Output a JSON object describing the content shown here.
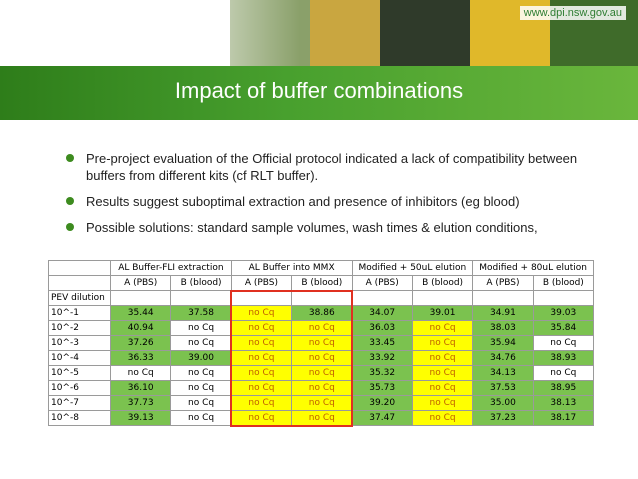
{
  "header": {
    "url": "www.dpi.nsw.gov.au",
    "photos": [
      {
        "name": "landscape-photo",
        "color": "#8aa06a"
      },
      {
        "name": "factory-photo",
        "color": "#c9a640"
      },
      {
        "name": "cattle-photo",
        "color": "#2f3a2a"
      },
      {
        "name": "sunflower-photo",
        "color": "#e0b82a"
      },
      {
        "name": "forest-photo",
        "color": "#3f6b2a"
      }
    ]
  },
  "title": "Impact of buffer combinations",
  "bullets": [
    "Pre-project evaluation of the Official protocol indicated a lack of compatibility between buffers from different kits (cf RLT buffer).",
    "Results suggest suboptimal extraction and presence of inhibitors (eg blood)",
    "Possible solutions: standard sample volumes, wash times & elution conditions,"
  ],
  "table": {
    "groups": [
      "AL Buffer-FLI extraction",
      "AL Buffer into MMX",
      "Modified + 50uL elution",
      "Modified + 80uL elution"
    ],
    "subheaders": [
      "A (PBS)",
      "B (blood)",
      "A (PBS)",
      "B (blood)",
      "A (PBS)",
      "B (blood)",
      "A (PBS)",
      "B (blood)"
    ],
    "pev_label": "PEV dilution",
    "rows": [
      {
        "label": "10^-1",
        "cells": [
          {
            "v": "35.44",
            "c": "g"
          },
          {
            "v": "37.58",
            "c": "g"
          },
          {
            "v": "no Cq",
            "c": "y"
          },
          {
            "v": "38.86",
            "c": "g"
          },
          {
            "v": "34.07",
            "c": "g"
          },
          {
            "v": "39.01",
            "c": "g"
          },
          {
            "v": "34.91",
            "c": "g"
          },
          {
            "v": "39.03",
            "c": "g"
          }
        ]
      },
      {
        "label": "10^-2",
        "cells": [
          {
            "v": "40.94",
            "c": "g"
          },
          {
            "v": "no Cq",
            "c": ""
          },
          {
            "v": "no Cq",
            "c": "y"
          },
          {
            "v": "no Cq",
            "c": "y"
          },
          {
            "v": "36.03",
            "c": "g"
          },
          {
            "v": "no Cq",
            "c": "y"
          },
          {
            "v": "38.03",
            "c": "g"
          },
          {
            "v": "35.84",
            "c": "g"
          }
        ]
      },
      {
        "label": "10^-3",
        "cells": [
          {
            "v": "37.26",
            "c": "g"
          },
          {
            "v": "no Cq",
            "c": ""
          },
          {
            "v": "no Cq",
            "c": "y"
          },
          {
            "v": "no Cq",
            "c": "y"
          },
          {
            "v": "33.45",
            "c": "g"
          },
          {
            "v": "no Cq",
            "c": "y"
          },
          {
            "v": "35.94",
            "c": "g"
          },
          {
            "v": "no Cq",
            "c": ""
          }
        ]
      },
      {
        "label": "10^-4",
        "cells": [
          {
            "v": "36.33",
            "c": "g"
          },
          {
            "v": "39.00",
            "c": "g"
          },
          {
            "v": "no Cq",
            "c": "y"
          },
          {
            "v": "no Cq",
            "c": "y"
          },
          {
            "v": "33.92",
            "c": "g"
          },
          {
            "v": "no Cq",
            "c": "y"
          },
          {
            "v": "34.76",
            "c": "g"
          },
          {
            "v": "38.93",
            "c": "g"
          }
        ]
      },
      {
        "label": "10^-5",
        "cells": [
          {
            "v": "no Cq",
            "c": ""
          },
          {
            "v": "no Cq",
            "c": ""
          },
          {
            "v": "no Cq",
            "c": "y"
          },
          {
            "v": "no Cq",
            "c": "y"
          },
          {
            "v": "35.32",
            "c": "g"
          },
          {
            "v": "no Cq",
            "c": "y"
          },
          {
            "v": "34.13",
            "c": "g"
          },
          {
            "v": "no Cq",
            "c": ""
          }
        ]
      },
      {
        "label": "10^-6",
        "cells": [
          {
            "v": "36.10",
            "c": "g"
          },
          {
            "v": "no Cq",
            "c": ""
          },
          {
            "v": "no Cq",
            "c": "y"
          },
          {
            "v": "no Cq",
            "c": "y"
          },
          {
            "v": "35.73",
            "c": "g"
          },
          {
            "v": "no Cq",
            "c": "y"
          },
          {
            "v": "37.53",
            "c": "g"
          },
          {
            "v": "38.95",
            "c": "g"
          }
        ]
      },
      {
        "label": "10^-7",
        "cells": [
          {
            "v": "37.73",
            "c": "g"
          },
          {
            "v": "no Cq",
            "c": ""
          },
          {
            "v": "no Cq",
            "c": "y"
          },
          {
            "v": "no Cq",
            "c": "y"
          },
          {
            "v": "39.20",
            "c": "g"
          },
          {
            "v": "no Cq",
            "c": "y"
          },
          {
            "v": "35.00",
            "c": "g"
          },
          {
            "v": "38.13",
            "c": "g"
          }
        ]
      },
      {
        "label": "10^-8",
        "cells": [
          {
            "v": "39.13",
            "c": "g"
          },
          {
            "v": "no Cq",
            "c": ""
          },
          {
            "v": "no Cq",
            "c": "y"
          },
          {
            "v": "no Cq",
            "c": "y"
          },
          {
            "v": "37.47",
            "c": "g"
          },
          {
            "v": "no Cq",
            "c": "y"
          },
          {
            "v": "37.23",
            "c": "g"
          },
          {
            "v": "38.17",
            "c": "g"
          }
        ]
      }
    ]
  },
  "colors": {
    "green_cell": "#7bc24f",
    "yellow_cell": "#ffff00",
    "highlight_border": "#e03020",
    "accent": "#3d8b1f"
  }
}
